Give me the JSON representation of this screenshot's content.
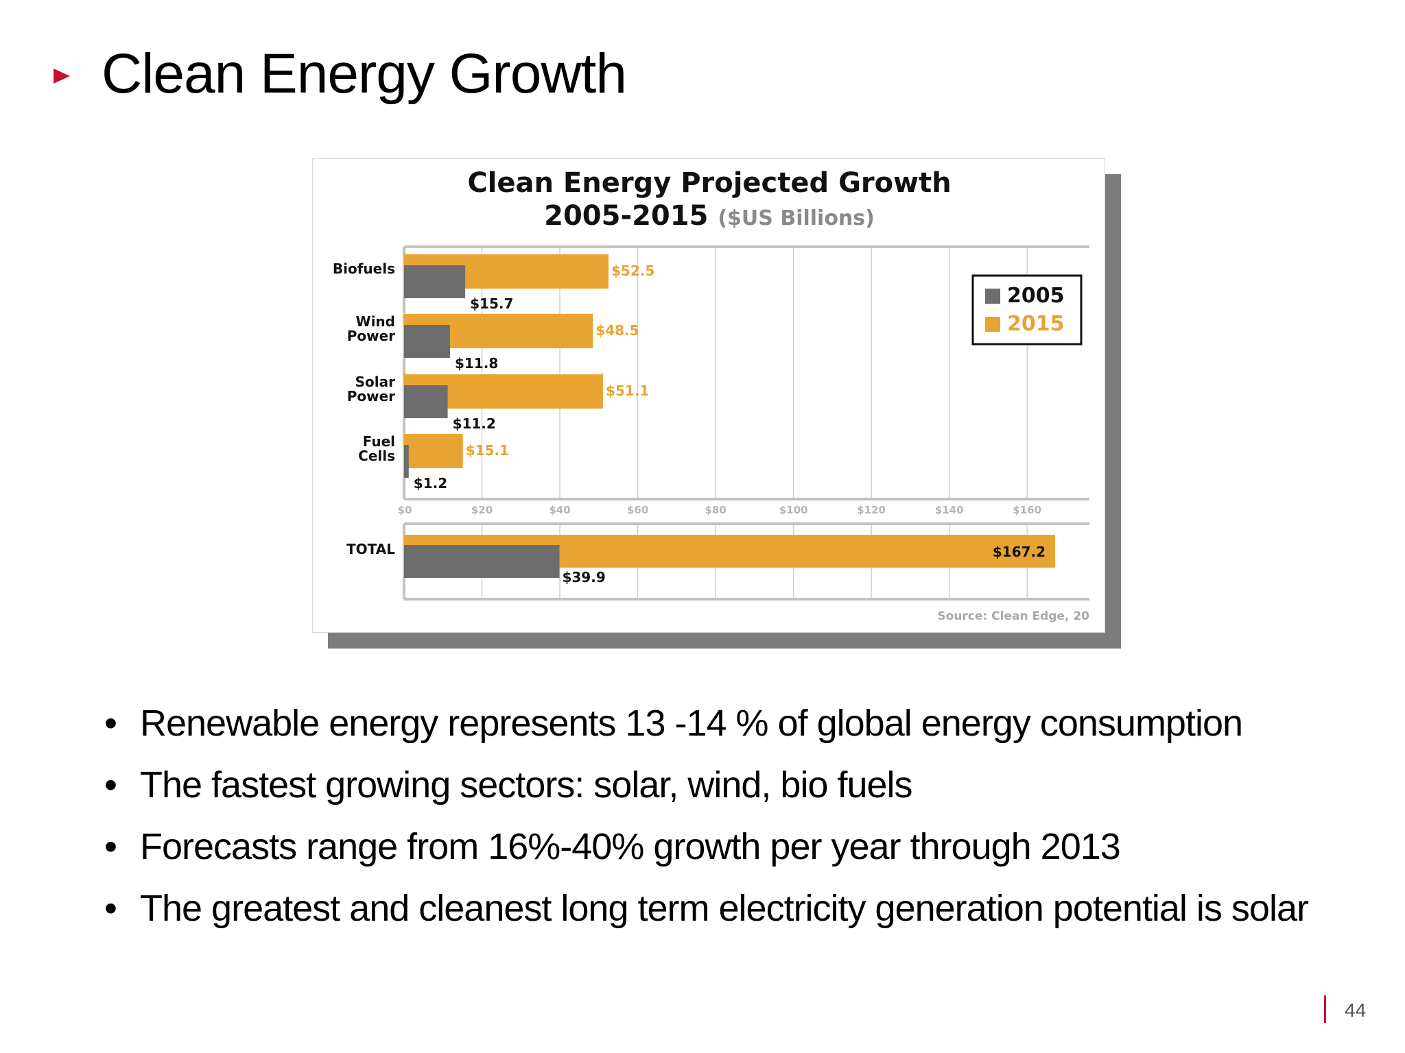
{
  "slide": {
    "title": "Clean Energy Growth",
    "accent_color": "#c8102e",
    "bullet_icon": "red-triangle",
    "bullets": [
      "Renewable energy represents 13 -14 % of global energy consumption",
      "The fastest growing sectors: solar, wind, bio fuels",
      "Forecasts range from 16%-40% growth per year through 2013",
      "The greatest and cleanest long term electricity generation potential is solar"
    ],
    "page_number": "44"
  },
  "chart_data": {
    "type": "bar",
    "orientation": "horizontal",
    "title": "Clean Energy Projected Growth",
    "subtitle_years": "2005-2015",
    "subtitle_units": "($US Billions)",
    "categories": [
      {
        "label_lines": [
          "Biofuels"
        ]
      },
      {
        "label_lines": [
          "Wind",
          "Power"
        ]
      },
      {
        "label_lines": [
          "Solar",
          "Power"
        ]
      },
      {
        "label_lines": [
          "Fuel",
          "Cells"
        ]
      }
    ],
    "series": [
      {
        "name": "2005",
        "color": "#6d6d6d",
        "values": [
          15.7,
          11.8,
          11.2,
          1.2
        ],
        "labels": [
          "$15.7",
          "$11.8",
          "$11.2",
          "$1.2"
        ]
      },
      {
        "name": "2015",
        "color": "#e8a432",
        "values": [
          52.5,
          48.5,
          51.1,
          15.1
        ],
        "labels": [
          "$52.5",
          "$48.5",
          "$51.1",
          "$15.1"
        ]
      }
    ],
    "total": {
      "label": "TOTAL",
      "values": {
        "2005": 39.9,
        "2015": 167.2
      },
      "labels": {
        "2005": "$39.9",
        "2015": "$167.2"
      }
    },
    "x_ticks": [
      0,
      20,
      40,
      60,
      80,
      100,
      120,
      140,
      160
    ],
    "x_tick_labels": [
      "$0",
      "$20",
      "$40",
      "$60",
      "$80",
      "$100",
      "$120",
      "$140",
      "$160"
    ],
    "xlim": [
      0,
      176
    ],
    "grid": true,
    "legend_position": "top-right",
    "source": "Source: Clean Edge, 20"
  }
}
